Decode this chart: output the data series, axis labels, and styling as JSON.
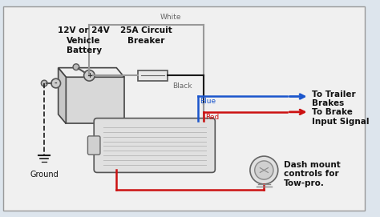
{
  "bg_color": "#dde5ed",
  "inner_bg": "#f0f0f0",
  "border_color": "#aaaaaa",
  "line_black": "#1a1a1a",
  "line_blue": "#1a55cc",
  "line_red": "#cc1111",
  "line_white": "#888888",
  "text_dark": "#111111",
  "text_blue": "#1a55cc",
  "text_red": "#cc1111",
  "text_gray": "#666666",
  "label_battery": "12V or 24V\nVehicle\nBattery",
  "label_breaker": "25A Circuit\nBreaker",
  "label_ground": "Ground",
  "label_white": "White",
  "label_black": "Black",
  "label_blue": "Blue",
  "label_red": "Red",
  "label_trailer": "To Trailer\nBrakes",
  "label_brake": "To Brake\nInput Signal",
  "label_dash": "Dash mount\ncontrols for\nTow-pro.",
  "label_plus": "+",
  "label_minus": "-"
}
